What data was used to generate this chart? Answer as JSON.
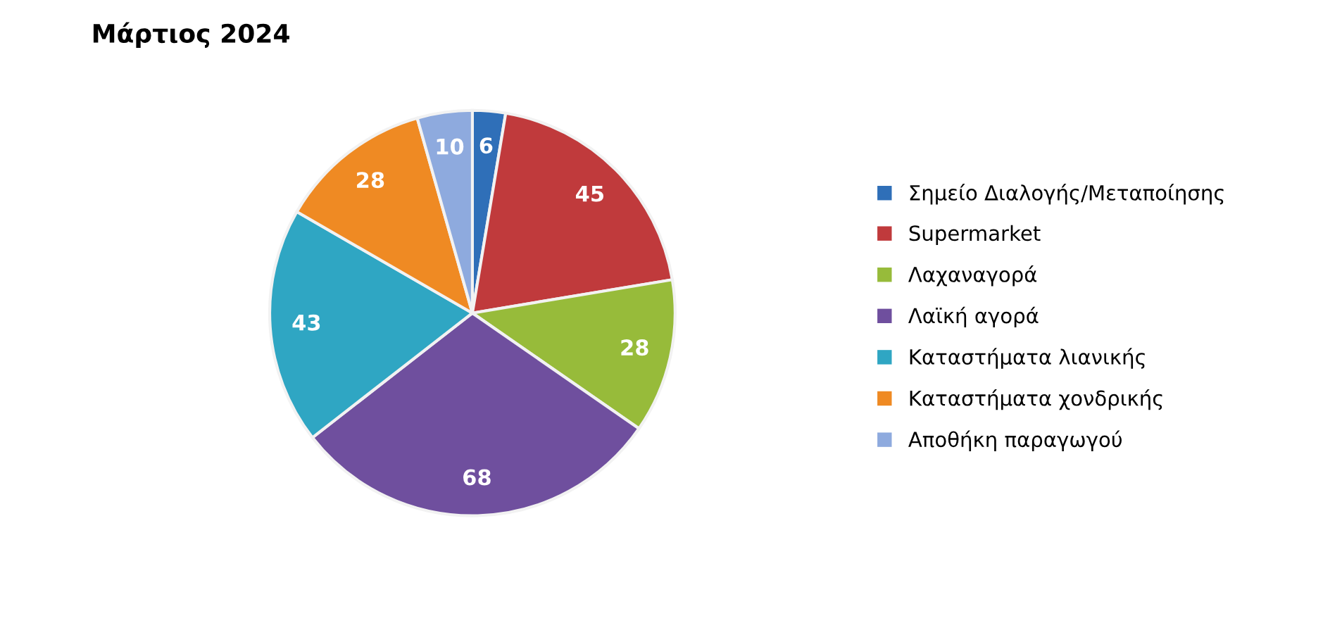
{
  "chart_data": {
    "type": "pie",
    "title": "Μάρτιος 2024",
    "categories": [
      "Σημείο Διαλογής/Μεταποίησης",
      "Supermarket",
      "Λαχαναγορά",
      "Λαϊκή αγορά",
      "Καταστήματα λιανικής",
      "Καταστήματα χονδρικής",
      "Αποθήκη παραγωγού"
    ],
    "values": [
      6,
      45,
      28,
      68,
      43,
      28,
      10
    ],
    "colors": [
      "#2f6fb8",
      "#c03a3c",
      "#97bb3a",
      "#6f4f9e",
      "#2fa6c3",
      "#ef8a23",
      "#8eaade"
    ],
    "data_labels": true,
    "legend": "right"
  }
}
